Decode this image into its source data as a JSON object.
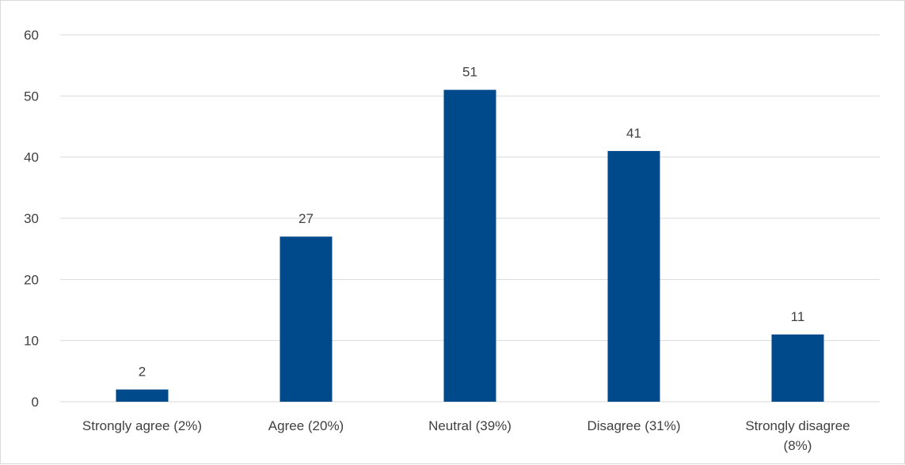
{
  "chart_data": {
    "type": "bar",
    "categories": [
      [
        "Strongly agree (2%)"
      ],
      [
        "Agree (20%)"
      ],
      [
        "Neutral (39%)"
      ],
      [
        "Disagree (31%)"
      ],
      [
        "Strongly disagree",
        "(8%)"
      ]
    ],
    "values": [
      2,
      27,
      51,
      41,
      11
    ],
    "data_labels": [
      "2",
      "27",
      "51",
      "41",
      "11"
    ],
    "ylim": [
      0,
      60
    ],
    "yticks": [
      0,
      10,
      20,
      30,
      40,
      50,
      60
    ],
    "ytick_labels": [
      "0",
      "10",
      "20",
      "30",
      "40",
      "50",
      "60"
    ],
    "grid": true,
    "legend": "none",
    "colors": {
      "bar": "#004a8c",
      "grid": "#d9d9d9",
      "text": "#404040"
    }
  }
}
